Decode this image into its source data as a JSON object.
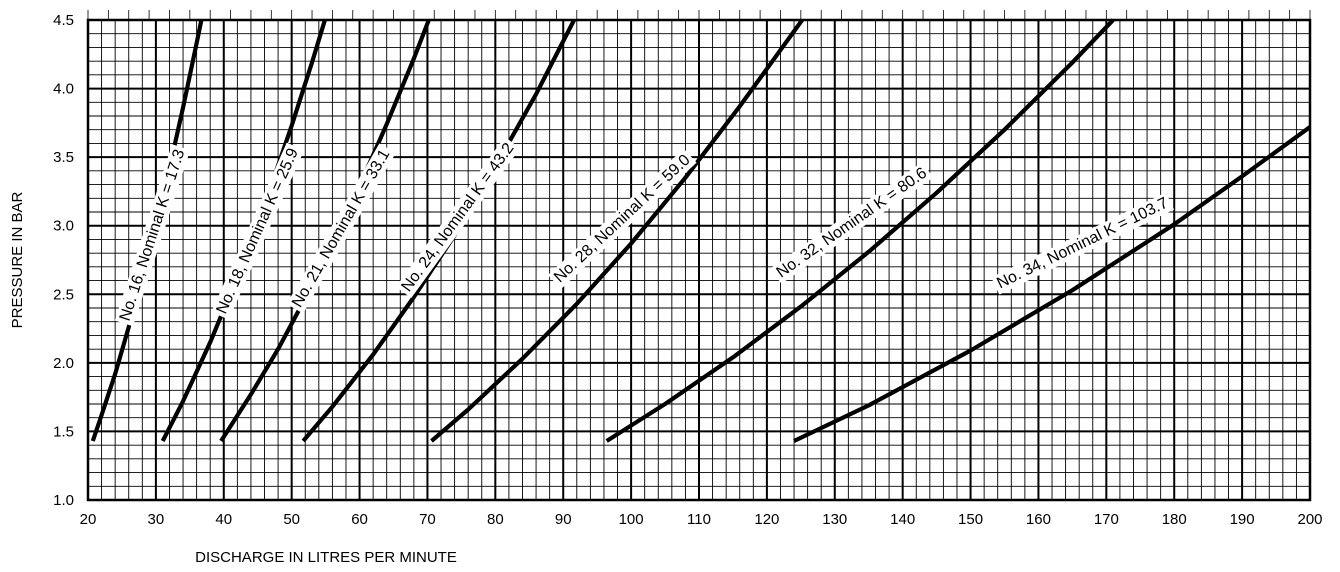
{
  "chart_data": {
    "type": "line",
    "title": "",
    "xlabel": "DISCHARGE IN LITRES PER MINUTE",
    "ylabel": "PRESSURE IN BAR",
    "xlim": [
      20,
      200
    ],
    "ylim": [
      1.0,
      4.5
    ],
    "xticks": [
      20,
      30,
      40,
      50,
      60,
      70,
      80,
      90,
      100,
      110,
      120,
      130,
      140,
      150,
      160,
      170,
      180,
      190,
      200
    ],
    "yticks": [
      "1.0",
      "1.5",
      "2.0",
      "2.5",
      "3.0",
      "3.5",
      "4.0",
      "4.5"
    ],
    "grid": true,
    "minor_grid_per_major_x": 5,
    "minor_grid_per_major_y": 5,
    "line_color": "#000000",
    "series": [
      {
        "name": "No. 16, Nominal K = 17.3",
        "k": 17.3,
        "points": [
          [
            20.7,
            1.43
          ],
          [
            22,
            1.62
          ],
          [
            24,
            1.92
          ],
          [
            26,
            2.26
          ],
          [
            28,
            2.62
          ],
          [
            30,
            3.0
          ],
          [
            32,
            3.42
          ],
          [
            34,
            3.86
          ],
          [
            36,
            4.33
          ],
          [
            36.7,
            4.5
          ]
        ]
      },
      {
        "name": "No. 18, Nominal K = 25.9",
        "k": 25.9,
        "points": [
          [
            31,
            1.43
          ],
          [
            34,
            1.72
          ],
          [
            38,
            2.15
          ],
          [
            42,
            2.63
          ],
          [
            46,
            3.15
          ],
          [
            50,
            3.73
          ],
          [
            53,
            4.19
          ],
          [
            54.9,
            4.5
          ]
        ]
      },
      {
        "name": "No. 21, Nominal K = 33.1",
        "k": 33.1,
        "points": [
          [
            39.6,
            1.43
          ],
          [
            44,
            1.77
          ],
          [
            48,
            2.1
          ],
          [
            52,
            2.47
          ],
          [
            56,
            2.86
          ],
          [
            60,
            3.29
          ],
          [
            64,
            3.74
          ],
          [
            68,
            4.22
          ],
          [
            70.2,
            4.5
          ]
        ]
      },
      {
        "name": "No. 24, Nominal K = 43.2",
        "k": 43.2,
        "points": [
          [
            51.7,
            1.43
          ],
          [
            56,
            1.68
          ],
          [
            62,
            2.06
          ],
          [
            68,
            2.48
          ],
          [
            74,
            2.93
          ],
          [
            80,
            3.43
          ],
          [
            86,
            3.96
          ],
          [
            91.6,
            4.5
          ]
        ]
      },
      {
        "name": "No. 28, Nominal K = 59.0",
        "k": 59.0,
        "points": [
          [
            70.6,
            1.43
          ],
          [
            76,
            1.66
          ],
          [
            84,
            2.03
          ],
          [
            92,
            2.43
          ],
          [
            100,
            2.87
          ],
          [
            108,
            3.35
          ],
          [
            116,
            3.87
          ],
          [
            125.2,
            4.5
          ]
        ]
      },
      {
        "name": "No. 32, Nominal K = 80.6",
        "k": 80.6,
        "points": [
          [
            96.4,
            1.43
          ],
          [
            105,
            1.7
          ],
          [
            115,
            2.04
          ],
          [
            125,
            2.41
          ],
          [
            135,
            2.81
          ],
          [
            145,
            3.24
          ],
          [
            155,
            3.7
          ],
          [
            165,
            4.19
          ],
          [
            171,
            4.5
          ]
        ]
      },
      {
        "name": "No. 34, Nominal K = 103.7",
        "k": 103.7,
        "points": [
          [
            124,
            1.43
          ],
          [
            135,
            1.69
          ],
          [
            150,
            2.09
          ],
          [
            165,
            2.53
          ],
          [
            180,
            3.01
          ],
          [
            190,
            3.36
          ],
          [
            200,
            3.72
          ]
        ]
      }
    ],
    "labels": [
      {
        "text": "No. 16, Nominal K = 17.3",
        "x": 29.5,
        "y": 2.93,
        "angle": -72
      },
      {
        "text": "No. 18, Nominal K = 25.9",
        "x": 45.0,
        "y": 2.96,
        "angle": -66
      },
      {
        "text": "No. 21, Nominal K = 33.1",
        "x": 57.3,
        "y": 2.98,
        "angle": -60
      },
      {
        "text": "No. 24, Nominal K = 43.2",
        "x": 74.5,
        "y": 3.06,
        "angle": -54
      },
      {
        "text": "No. 28, Nominal K = 59.0",
        "x": 98.7,
        "y": 3.05,
        "angle": -43
      },
      {
        "text": "No. 32, Nominal K = 80.6",
        "x": 132.5,
        "y": 3.02,
        "angle": -35
      },
      {
        "text": "No. 34, Nominal K = 103.7",
        "x": 166.5,
        "y": 2.87,
        "angle": -26
      }
    ]
  }
}
